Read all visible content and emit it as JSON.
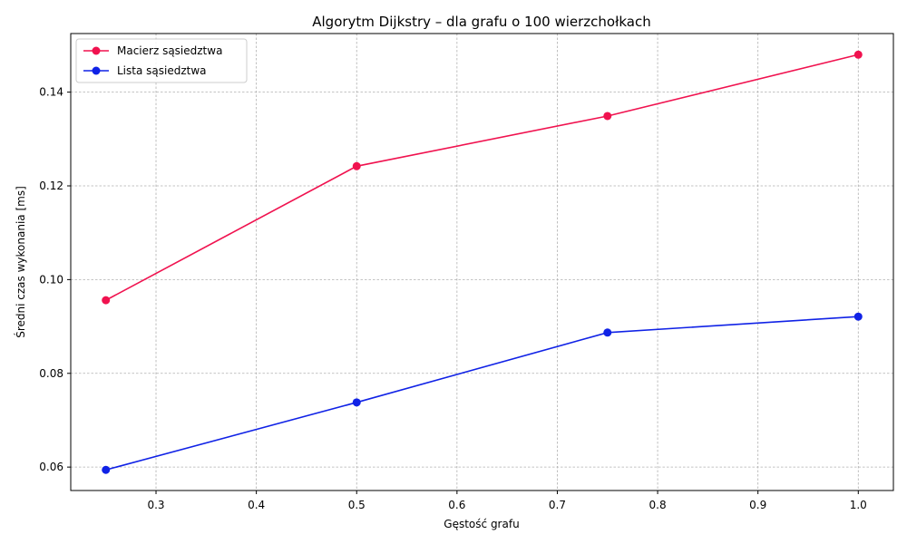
{
  "chart_data": {
    "type": "line",
    "title": "Algorytm Dijkstry – dla grafu o 100 wierzchołkach",
    "xlabel": "Gęstość grafu",
    "ylabel": "Średni czas wykonania [ms]",
    "x": [
      0.25,
      0.5,
      0.75,
      1.0
    ],
    "xlim": [
      0.215,
      1.035
    ],
    "ylim": [
      0.055,
      0.1525
    ],
    "xticks": [
      0.3,
      0.4,
      0.5,
      0.6,
      0.7,
      0.8,
      0.9,
      1.0
    ],
    "xtick_labels": [
      "0.3",
      "0.4",
      "0.5",
      "0.6",
      "0.7",
      "0.8",
      "0.9",
      "1.0"
    ],
    "yticks": [
      0.06,
      0.08,
      0.1,
      0.12,
      0.14
    ],
    "ytick_labels": [
      "0.06",
      "0.08",
      "0.10",
      "0.12",
      "0.14"
    ],
    "grid": true,
    "legend_position": "top-left",
    "series": [
      {
        "name": "Macierz sąsiedztwa",
        "color": "#f0124f",
        "values": [
          0.0956,
          0.1242,
          0.1349,
          0.148
        ]
      },
      {
        "name": "Lista sąsiedztwa",
        "color": "#1022e6",
        "values": [
          0.0594,
          0.0738,
          0.0887,
          0.0921
        ]
      }
    ]
  }
}
